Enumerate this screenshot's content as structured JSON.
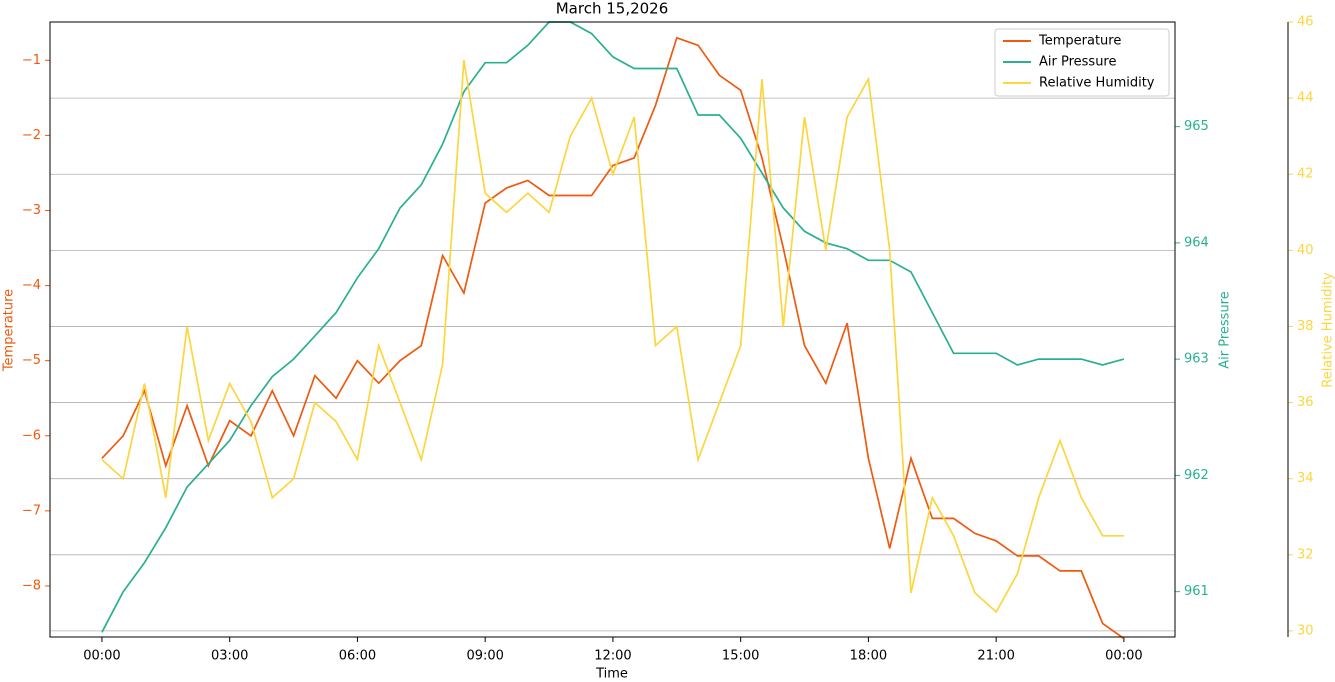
{
  "chart_data": {
    "type": "line",
    "title": "March 15,2026",
    "xlabel": "Time",
    "ylabel": "Temperature",
    "y2label": "Air Pressure",
    "y3label": "Relative Humidity",
    "x": [
      0,
      0.5,
      1,
      1.5,
      2,
      2.5,
      3,
      3.5,
      4,
      4.5,
      5,
      5.5,
      6,
      6.5,
      7,
      7.5,
      8,
      8.5,
      9,
      9.5,
      10,
      10.5,
      11,
      11.5,
      12,
      12.5,
      13,
      13.5,
      14,
      14.5,
      15,
      15.5,
      16,
      16.5,
      17,
      17.5,
      18,
      18.5,
      19,
      19.5,
      20,
      20.5,
      21,
      21.5,
      22,
      22.5,
      23,
      23.5,
      24
    ],
    "xlim": [
      -1.22,
      25.2
    ],
    "xticks": [
      {
        "value": 0,
        "label": "00:00"
      },
      {
        "value": 3,
        "label": "03:00"
      },
      {
        "value": 6,
        "label": "06:00"
      },
      {
        "value": 9,
        "label": "09:00"
      },
      {
        "value": 12,
        "label": "12:00"
      },
      {
        "value": 15,
        "label": "15:00"
      },
      {
        "value": 18,
        "label": "18:00"
      },
      {
        "value": 21,
        "label": "21:00"
      },
      {
        "value": 24,
        "label": "00:00"
      }
    ],
    "ylim": [
      -8.68,
      -0.49
    ],
    "yticks": [
      {
        "value": -8,
        "label": "−8"
      },
      {
        "value": -7,
        "label": "−7"
      },
      {
        "value": -6,
        "label": "−6"
      },
      {
        "value": -5,
        "label": "−5"
      },
      {
        "value": -4,
        "label": "−4"
      },
      {
        "value": -3,
        "label": "−3"
      },
      {
        "value": -2,
        "label": "−2"
      },
      {
        "value": -1,
        "label": "−1"
      }
    ],
    "y2lim": [
      960.61,
      965.9
    ],
    "y2ticks": [
      961,
      962,
      963,
      964,
      965
    ],
    "y3lim": [
      29.84,
      46
    ],
    "y3ticks": [
      30,
      32,
      34,
      36,
      38,
      40,
      42,
      44,
      46
    ],
    "grid": true,
    "grid_axis": "y3",
    "legend": "upper right",
    "series": [
      {
        "name": "Temperature",
        "color": "#ee5a0f",
        "axis": "y",
        "values": [
          -6.3,
          -6.0,
          -5.4,
          -6.4,
          -5.6,
          -6.4,
          -5.8,
          -6.0,
          -5.4,
          -6.0,
          -5.2,
          -5.5,
          -5.0,
          -5.3,
          -5.0,
          -4.8,
          -3.6,
          -4.1,
          -2.9,
          -2.7,
          -2.6,
          -2.8,
          -2.8,
          -2.8,
          -2.4,
          -2.3,
          -1.6,
          -0.7,
          -0.8,
          -1.2,
          -1.4,
          -2.3,
          -3.5,
          -4.8,
          -5.3,
          -4.5,
          -6.3,
          -7.5,
          -6.3,
          -7.1,
          -7.1,
          -7.3,
          -7.4,
          -7.6,
          -7.6,
          -7.8,
          -7.8,
          -8.5,
          -8.7
        ]
      },
      {
        "name": "Air Pressure",
        "color": "#2ab090",
        "axis": "y2",
        "values": [
          960.65,
          961.0,
          961.25,
          961.55,
          961.9,
          962.1,
          962.3,
          962.6,
          962.85,
          963.0,
          963.2,
          963.4,
          963.7,
          963.95,
          964.3,
          964.5,
          964.85,
          965.3,
          965.55,
          965.55,
          965.7,
          965.9,
          965.9,
          965.8,
          965.6,
          965.5,
          965.5,
          965.5,
          965.1,
          965.1,
          964.9,
          964.6,
          964.3,
          964.1,
          964.0,
          963.95,
          963.85,
          963.85,
          963.75,
          963.4,
          963.05,
          963.05,
          963.05,
          962.95,
          963.0,
          963.0,
          963.0,
          962.95,
          963.0
        ]
      },
      {
        "name": "Relative Humidity",
        "color": "#fcd53f",
        "axis": "y3",
        "values": [
          34.5,
          34.0,
          36.5,
          33.5,
          38.0,
          35.0,
          36.5,
          35.5,
          33.5,
          34.0,
          36.0,
          35.5,
          34.5,
          37.5,
          36.0,
          34.5,
          37.0,
          45.0,
          41.5,
          41.0,
          41.5,
          41.0,
          43.0,
          44.0,
          42.0,
          43.5,
          37.5,
          38.0,
          34.5,
          36.0,
          37.5,
          44.5,
          38.0,
          43.5,
          40.0,
          43.5,
          44.5,
          40.0,
          31.0,
          33.5,
          32.5,
          31.0,
          30.5,
          31.5,
          33.5,
          35.0,
          33.5,
          32.5,
          32.5
        ]
      }
    ]
  }
}
